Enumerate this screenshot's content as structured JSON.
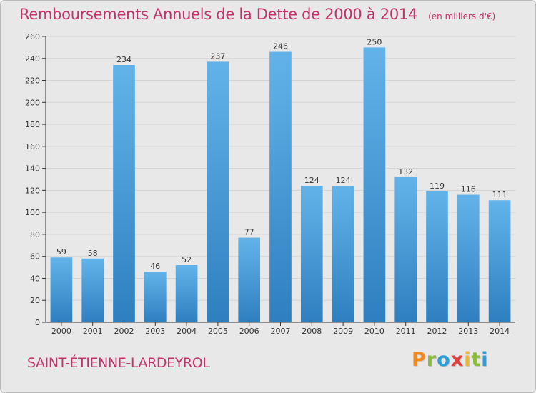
{
  "chart_data": {
    "type": "bar",
    "title": "Remboursements Annuels de la Dette de 2000 à 2014",
    "subtitle": "(en milliers d'€)",
    "xlabel": "",
    "ylabel": "",
    "categories": [
      "2000",
      "2001",
      "2002",
      "2003",
      "2004",
      "2005",
      "2006",
      "2007",
      "2008",
      "2009",
      "2010",
      "2011",
      "2012",
      "2013",
      "2014"
    ],
    "values": [
      59,
      58,
      234,
      46,
      52,
      237,
      77,
      246,
      124,
      124,
      250,
      132,
      119,
      116,
      111
    ],
    "ylim": [
      0,
      260
    ],
    "yticks": [
      0,
      20,
      40,
      60,
      80,
      100,
      120,
      140,
      160,
      180,
      200,
      220,
      240,
      260
    ],
    "grid": true,
    "colors": {
      "bar_top": "#63b3ea",
      "bar_bottom": "#2e7fbf",
      "grid": "#d4d4d4",
      "axis": "#333333",
      "title": "#c0346a"
    }
  },
  "commune": "SAINT-ÉTIENNE-LARDEYROL",
  "logo": {
    "letters": [
      "P",
      "r",
      "o",
      "x",
      "i",
      "t",
      "i"
    ],
    "colors": [
      "#f28b1e",
      "#8bbd3a",
      "#2b9fd9",
      "#e43d3d",
      "#f2b52b",
      "#8bbd3a",
      "#2b9fd9"
    ]
  }
}
